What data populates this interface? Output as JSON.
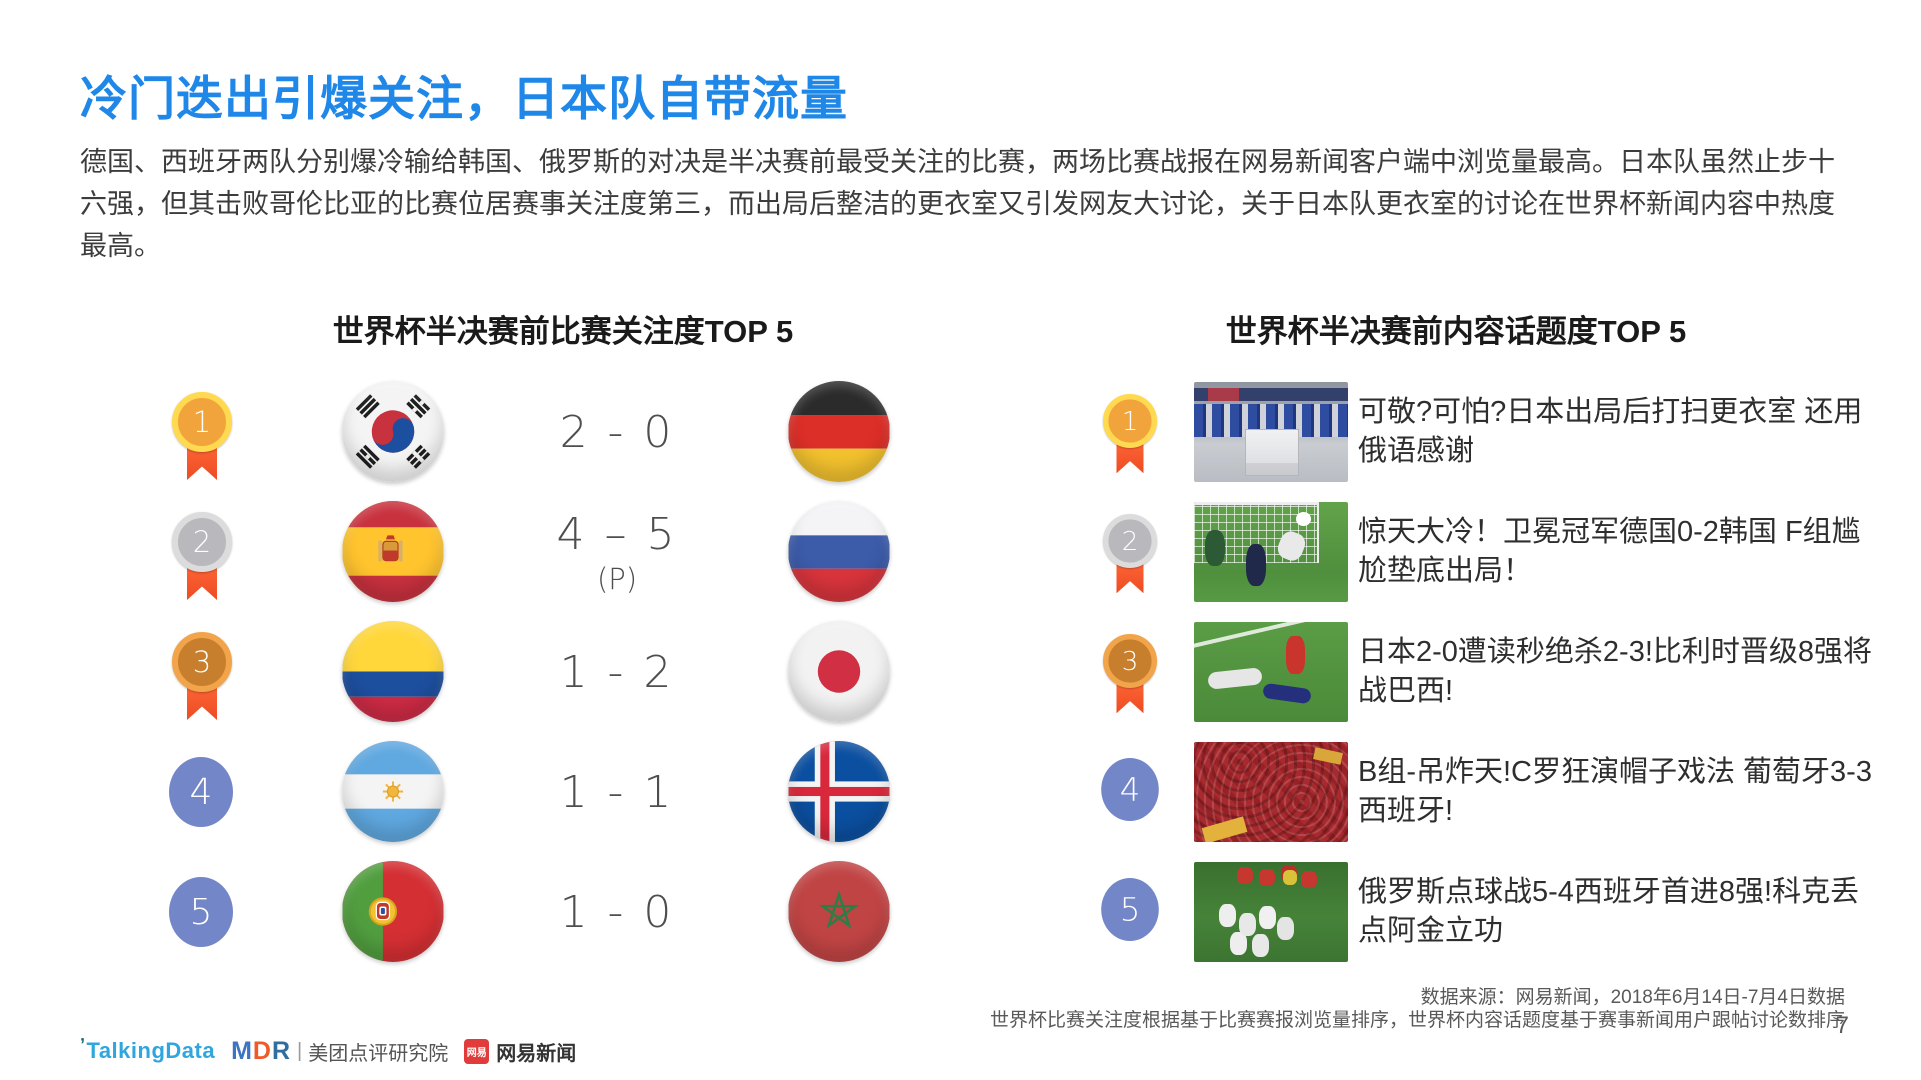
{
  "page": {
    "title": "冷门迭出引爆关注，日本队自带流量",
    "paragraph": "德国、西班牙两队分别爆冷输给韩国、俄罗斯的对决是半决赛前最受关注的比赛，两场比赛战报在网易新闻客户端中浏览量最高。日本队虽然止步十六强，但其击败哥伦比亚的比赛位居赛事关注度第三，而出局后整洁的更衣室又引发网友大讨论，关于日本队更衣室的讨论在世界杯新闻内容中热度最高。",
    "page_number": "7"
  },
  "left_panel": {
    "title": "世界杯半决赛前比赛关注度TOP 5",
    "rows": [
      {
        "rank": "1",
        "medal_style": "gold",
        "home_flag": "south-korea",
        "score": "2 - 0",
        "score_note": "",
        "away_flag": "germany"
      },
      {
        "rank": "2",
        "medal_style": "silver",
        "home_flag": "spain",
        "score": "4 – 5",
        "score_note": "(P)",
        "away_flag": "russia"
      },
      {
        "rank": "3",
        "medal_style": "bronze",
        "home_flag": "colombia",
        "score": "1 - 2",
        "score_note": "",
        "away_flag": "japan"
      },
      {
        "rank": "4",
        "medal_style": "blue",
        "home_flag": "argentina",
        "score": "1 - 1",
        "score_note": "",
        "away_flag": "iceland"
      },
      {
        "rank": "5",
        "medal_style": "blue",
        "home_flag": "portugal",
        "score": "1 - 0",
        "score_note": "",
        "away_flag": "morocco"
      }
    ]
  },
  "right_panel": {
    "title": "世界杯半决赛前内容话题度TOP 5",
    "rows": [
      {
        "rank": "1",
        "medal_style": "gold",
        "photo": "locker-room",
        "headline": "可敬?可怕?日本出局后打扫更衣室 还用俄语感谢"
      },
      {
        "rank": "2",
        "medal_style": "silver",
        "photo": "germany-korea",
        "headline": "惊天大冷！卫冕冠军德国0-2韩国 F组尴尬垫底出局！"
      },
      {
        "rank": "3",
        "medal_style": "bronze",
        "photo": "japan-belgium",
        "headline": "日本2-0遭读秒绝杀2-3!比利时晋级8强将战巴西!"
      },
      {
        "rank": "4",
        "medal_style": "blue",
        "photo": "spain-fans",
        "headline": "B组-吊炸天!C罗狂演帽子戏法 葡萄牙3-3西班牙!"
      },
      {
        "rank": "5",
        "medal_style": "blue",
        "photo": "russia-celebration",
        "headline": "俄罗斯点球战5-4西班牙首进8强!科克丢点阿金立功"
      }
    ]
  },
  "footer": {
    "source_line1": "数据来源：网易新闻，2018年6月14日-7月4日数据",
    "source_line2": "世界杯比赛关注度根据基于比赛赛报浏览量排序，世界杯内容话题度基于赛事新闻用户跟帖讨论数排序",
    "logos": {
      "talkingdata": "TalkingData",
      "mdr_m": "M",
      "mdr_d": "D",
      "mdr_r": "R",
      "divider": "|",
      "mdr_suffix": "美团点评研究院",
      "netease_badge": "网易",
      "netease_label": "网易新闻"
    }
  },
  "colors": {
    "title_blue": "#1E87E8",
    "body_text": "#3C3C3C",
    "score_text": "#4E4E4E",
    "footnote_text": "#595959",
    "medal_gold": "#F2A43C",
    "medal_silver": "#B9B9BD",
    "medal_bronze": "#C87F2D",
    "medal_blue": "#7386C8",
    "ribbon_orange": "#EE4B22"
  }
}
